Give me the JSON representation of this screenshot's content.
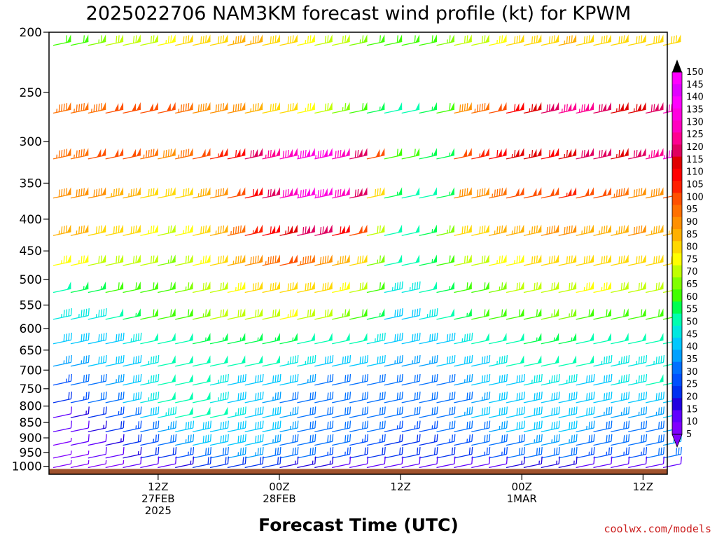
{
  "chart_data": {
    "type": "wind_barb_time_height",
    "title": "2025022706 NAM3KM forecast wind profile (kt) for KPWM",
    "xlabel": "Forecast Time (UTC)",
    "ylabel": "",
    "credit": "coolwx.com/models",
    "y_scale": "log-pressure",
    "y_ticks": [
      200,
      250,
      300,
      350,
      400,
      450,
      500,
      550,
      600,
      650,
      700,
      750,
      800,
      850,
      900,
      950,
      1000
    ],
    "ylim": [
      1030,
      200
    ],
    "x_range_hours": [
      -3,
      48
    ],
    "x_ticks": [
      {
        "hour": 6,
        "lines": [
          "12Z",
          "27FEB",
          "2025"
        ]
      },
      {
        "hour": 16,
        "lines": [
          "00Z",
          "28FEB"
        ]
      },
      {
        "hour": 26,
        "lines": [
          "12Z"
        ]
      },
      {
        "hour": 36,
        "lines": [
          "00Z",
          "1MAR"
        ]
      },
      {
        "hour": 46,
        "lines": [
          "12Z"
        ]
      }
    ],
    "x_step_hours": 2,
    "levels": [
      {
        "p": 210,
        "speed": [
          60,
          62,
          65,
          68,
          70,
          72,
          75,
          78,
          80,
          82,
          85,
          84,
          80,
          78,
          75,
          72,
          68,
          65,
          62,
          60,
          60,
          62,
          65,
          68,
          72,
          75,
          78,
          80,
          82,
          85,
          82,
          80,
          78,
          78,
          80,
          80
        ]
      },
      {
        "p": 270,
        "speed": [
          95,
          95,
          95,
          100,
          100,
          100,
          98,
          95,
          92,
          90,
          88,
          85,
          80,
          78,
          75,
          70,
          65,
          60,
          55,
          50,
          50,
          55,
          60,
          90,
          95,
          100,
          110,
          115,
          120,
          125,
          125,
          120,
          115,
          115,
          120,
          130
        ]
      },
      {
        "p": 320,
        "speed": [
          95,
          95,
          100,
          100,
          100,
          95,
          90,
          95,
          100,
          105,
          110,
          120,
          125,
          130,
          135,
          135,
          130,
          120,
          100,
          60,
          60,
          55,
          55,
          100,
          105,
          110,
          115,
          115,
          110,
          115,
          120,
          120,
          115,
          120,
          125,
          135
        ]
      },
      {
        "p": 370,
        "speed": [
          90,
          90,
          88,
          85,
          85,
          80,
          78,
          80,
          85,
          90,
          100,
          110,
          120,
          130,
          135,
          135,
          130,
          120,
          80,
          55,
          50,
          50,
          55,
          90,
          90,
          95,
          100,
          100,
          100,
          105,
          100,
          100,
          95,
          90,
          90,
          100
        ]
      },
      {
        "p": 425,
        "speed": [
          85,
          85,
          82,
          80,
          78,
          75,
          72,
          75,
          78,
          85,
          95,
          105,
          110,
          115,
          118,
          120,
          110,
          100,
          70,
          50,
          50,
          55,
          65,
          80,
          82,
          85,
          85,
          85,
          88,
          88,
          85,
          85,
          85,
          88,
          85,
          85
        ]
      },
      {
        "p": 475,
        "speed": [
          75,
          75,
          72,
          70,
          70,
          68,
          65,
          70,
          75,
          80,
          85,
          90,
          95,
          100,
          95,
          90,
          85,
          80,
          65,
          50,
          50,
          55,
          60,
          70,
          72,
          75,
          75,
          78,
          78,
          80,
          80,
          80,
          82,
          82,
          80,
          78
        ]
      },
      {
        "p": 525,
        "speed": [
          50,
          55,
          55,
          58,
          60,
          62,
          62,
          65,
          68,
          70,
          75,
          78,
          80,
          82,
          80,
          78,
          75,
          72,
          60,
          45,
          45,
          50,
          55,
          60,
          62,
          65,
          68,
          70,
          72,
          72,
          75,
          75,
          72,
          72,
          70,
          70
        ]
      },
      {
        "p": 580,
        "speed": [
          45,
          45,
          45,
          50,
          55,
          58,
          60,
          62,
          65,
          68,
          70,
          72,
          72,
          75,
          70,
          68,
          65,
          60,
          55,
          40,
          40,
          45,
          50,
          55,
          58,
          60,
          62,
          62,
          65,
          65,
          62,
          62,
          60,
          60,
          58,
          58
        ]
      },
      {
        "p": 635,
        "speed": [
          40,
          40,
          40,
          42,
          45,
          48,
          50,
          52,
          55,
          55,
          55,
          55,
          55,
          55,
          52,
          50,
          50,
          48,
          45,
          40,
          40,
          40,
          42,
          45,
          48,
          50,
          52,
          55,
          55,
          55,
          52,
          52,
          50,
          50,
          50,
          50
        ]
      },
      {
        "p": 690,
        "speed": [
          35,
          35,
          38,
          40,
          42,
          45,
          48,
          50,
          52,
          50,
          48,
          48,
          48,
          45,
          45,
          42,
          40,
          40,
          38,
          35,
          35,
          35,
          38,
          40,
          42,
          45,
          48,
          50,
          50,
          48,
          48,
          46,
          45,
          45,
          45,
          48
        ]
      },
      {
        "p": 740,
        "speed": [
          25,
          28,
          30,
          35,
          40,
          45,
          48,
          50,
          48,
          45,
          42,
          40,
          38,
          38,
          35,
          32,
          32,
          32,
          32,
          30,
          30,
          30,
          32,
          35,
          38,
          40,
          42,
          45,
          45,
          45,
          42,
          42,
          45,
          45,
          48,
          50
        ]
      },
      {
        "p": 790,
        "speed": [
          20,
          25,
          28,
          32,
          38,
          45,
          50,
          52,
          50,
          45,
          40,
          38,
          35,
          32,
          30,
          30,
          30,
          30,
          30,
          28,
          30,
          30,
          30,
          32,
          35,
          38,
          40,
          40,
          42,
          42,
          40,
          40,
          38,
          38,
          40,
          42
        ]
      },
      {
        "p": 835,
        "speed": [
          10,
          15,
          20,
          25,
          30,
          40,
          45,
          50,
          52,
          48,
          45,
          40,
          38,
          35,
          30,
          30,
          30,
          30,
          30,
          28,
          30,
          30,
          32,
          35,
          38,
          40,
          40,
          40,
          42,
          40,
          38,
          36,
          35,
          35,
          35,
          38
        ]
      },
      {
        "p": 880,
        "speed": [
          8,
          12,
          15,
          20,
          25,
          30,
          35,
          38,
          40,
          42,
          42,
          40,
          38,
          35,
          32,
          30,
          30,
          28,
          28,
          25,
          25,
          25,
          28,
          30,
          32,
          35,
          38,
          38,
          40,
          38,
          35,
          32,
          30,
          30,
          32,
          35
        ]
      },
      {
        "p": 925,
        "speed": [
          5,
          8,
          10,
          15,
          20,
          25,
          30,
          35,
          38,
          40,
          40,
          38,
          35,
          30,
          30,
          28,
          28,
          25,
          25,
          22,
          22,
          22,
          24,
          26,
          28,
          30,
          32,
          35,
          36,
          34,
          32,
          30,
          30,
          30,
          32,
          35
        ]
      },
      {
        "p": 970,
        "speed": [
          5,
          5,
          8,
          10,
          15,
          18,
          22,
          25,
          28,
          32,
          35,
          35,
          32,
          30,
          28,
          26,
          25,
          22,
          20,
          18,
          18,
          18,
          20,
          22,
          24,
          26,
          28,
          30,
          30,
          28,
          26,
          25,
          25,
          25,
          28,
          30
        ]
      },
      {
        "p": 1005,
        "speed": [
          3,
          3,
          5,
          5,
          8,
          10,
          12,
          15,
          18,
          20,
          22,
          20,
          18,
          16,
          15,
          14,
          12,
          10,
          10,
          8,
          8,
          8,
          10,
          10,
          12,
          12,
          14,
          15,
          15,
          14,
          12,
          12,
          10,
          10,
          12,
          12
        ]
      }
    ],
    "colorbar": {
      "min": 5,
      "max": 150,
      "step": 5,
      "colors": [
        "#8000ff",
        "#6000ff",
        "#2000e0",
        "#0030f0",
        "#0050ff",
        "#0070ff",
        "#00a0ff",
        "#00c8ff",
        "#00e8e0",
        "#00ffb0",
        "#00ff50",
        "#40ff00",
        "#80ff00",
        "#c0ff00",
        "#ffff00",
        "#ffd800",
        "#ffb000",
        "#ff9000",
        "#ff7000",
        "#ff5000",
        "#ff2000",
        "#ff0000",
        "#e00000",
        "#e00060",
        "#ff0090",
        "#ff00c0",
        "#ff00e0",
        "#ff00ff",
        "#e000ff",
        "#ff00ff"
      ]
    },
    "terrain_color": "#a0522d"
  }
}
